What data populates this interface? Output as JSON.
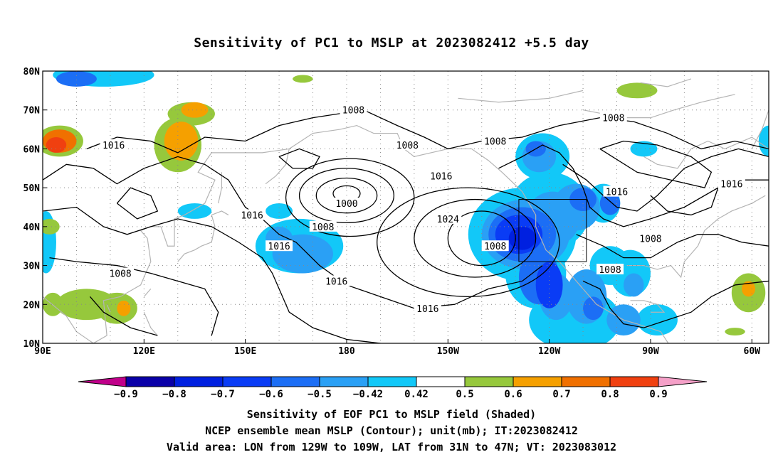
{
  "title": "Sensitivity of PC1 to MSLP at 2023082412 +5.5 day",
  "footer": {
    "line1": "Sensitivity of EOF PC1 to MSLP field (Shaded)",
    "line2": "NCEP ensemble mean MSLP (Contour); unit(mb); IT:2023082412",
    "line3": "Valid area: LON from 129W to 109W, LAT from 31N to 47N; VT: 2023083012"
  },
  "colors": {
    "neg_extreme": "#c0008a",
    "n09": "#0a00a8",
    "n08": "#0020e0",
    "n07": "#0a3cf5",
    "n06": "#1c6ef5",
    "n05": "#2aa0f5",
    "n042": "#12c8f8",
    "neutral": "#ffffff",
    "p042": "#96c83c",
    "p05": "#f5a000",
    "p06": "#f07000",
    "p07": "#f04010",
    "p08": "#f00010",
    "pos_extreme": "#f5a0c8",
    "land": "#b4b4b4",
    "contour": "#000000"
  },
  "chart_data": {
    "type": "heatmap",
    "title": "Sensitivity of PC1 to MSLP at 2023082412 +5.5 day",
    "x_ticks": [
      "90E",
      "120E",
      "150E",
      "180",
      "150W",
      "120W",
      "90W",
      "60W"
    ],
    "y_ticks": [
      "80N",
      "70N",
      "60N",
      "50N",
      "40N",
      "30N",
      "20N",
      "10N"
    ],
    "lon_range": [
      90,
      305
    ],
    "lat_range": [
      10,
      80
    ],
    "colorbar_labels": [
      "-0.9",
      "-0.8",
      "-0.7",
      "-0.6",
      "-0.5",
      "-0.42",
      "0.42",
      "0.5",
      "0.6",
      "0.7",
      "0.8",
      "0.9"
    ],
    "colorbar_boundaries": [
      -0.9,
      -0.8,
      -0.7,
      -0.6,
      -0.5,
      -0.42,
      0.42,
      0.5,
      0.6,
      0.7,
      0.8,
      0.9
    ],
    "contour_interval_mb": 8,
    "contour_labels": [
      {
        "value": "1008",
        "lon": 182,
        "lat": 70
      },
      {
        "value": "1016",
        "lon": 111,
        "lat": 61
      },
      {
        "value": "1008",
        "lon": 198,
        "lat": 61
      },
      {
        "value": "1008",
        "lon": 224,
        "lat": 62
      },
      {
        "value": "1008",
        "lon": 259,
        "lat": 68
      },
      {
        "value": "1016",
        "lon": 208,
        "lat": 53
      },
      {
        "value": "1016",
        "lon": 260,
        "lat": 49
      },
      {
        "value": "1016",
        "lon": 294,
        "lat": 51
      },
      {
        "value": "1000",
        "lon": 180,
        "lat": 46
      },
      {
        "value": "1016",
        "lon": 152,
        "lat": 43
      },
      {
        "value": "1024",
        "lon": 210,
        "lat": 42
      },
      {
        "value": "1008",
        "lon": 173,
        "lat": 40
      },
      {
        "value": "1016",
        "lon": 160,
        "lat": 35
      },
      {
        "value": "1008",
        "lon": 224,
        "lat": 35
      },
      {
        "value": "1008",
        "lon": 270,
        "lat": 37
      },
      {
        "value": "1008",
        "lon": 258,
        "lat": 29
      },
      {
        "value": "1008",
        "lon": 113,
        "lat": 28
      },
      {
        "value": "1016",
        "lon": 177,
        "lat": 26
      },
      {
        "value": "1016",
        "lon": 204,
        "lat": 19
      }
    ],
    "valid_box": {
      "lon": [
        231,
        251
      ],
      "lat": [
        31,
        47
      ]
    }
  }
}
